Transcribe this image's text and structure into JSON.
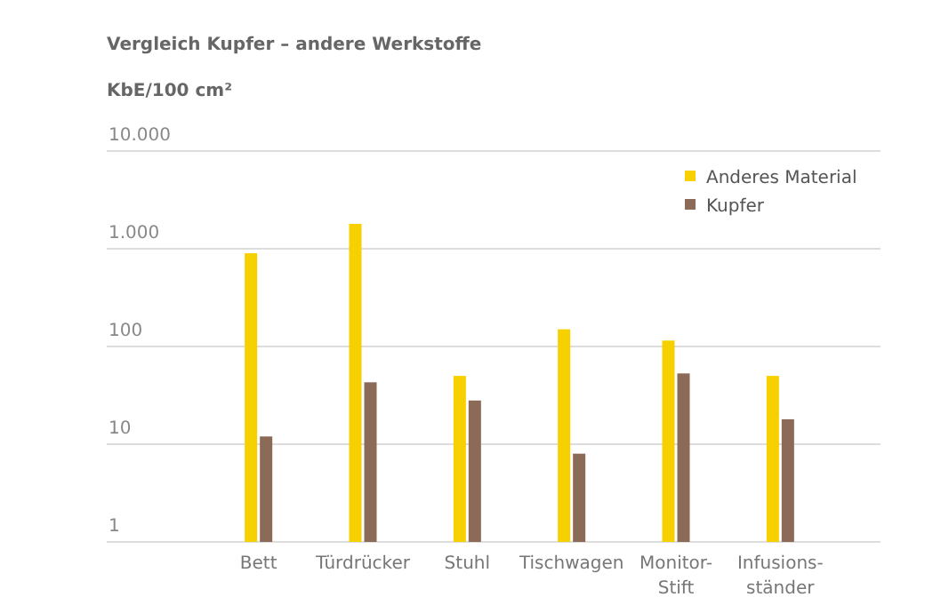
{
  "chart_data": {
    "type": "bar",
    "title": "Vergleich Kupfer – andere Werkstoffe",
    "ylabel": "KbE/100 cm²",
    "categories": [
      "Bett",
      "Türdrücker",
      "Stuhl",
      "Tischwagen",
      "Monitor-\nStift",
      "Infusions-\nständer"
    ],
    "series": [
      {
        "name": "Anderes Material",
        "color": "#f7d000",
        "values": [
          900,
          1800,
          50,
          150,
          115,
          50
        ]
      },
      {
        "name": "Kupfer",
        "color": "#8c6a58",
        "values": [
          12,
          43,
          28,
          8,
          53,
          18
        ]
      }
    ],
    "log": true,
    "ylim": [
      1,
      10000
    ],
    "yticks": [
      1,
      10,
      100,
      {
        "value": 1000,
        "label": "1.000"
      },
      {
        "value": 10000,
        "label": "10.000"
      }
    ],
    "grid": "y",
    "legend": "top right"
  }
}
